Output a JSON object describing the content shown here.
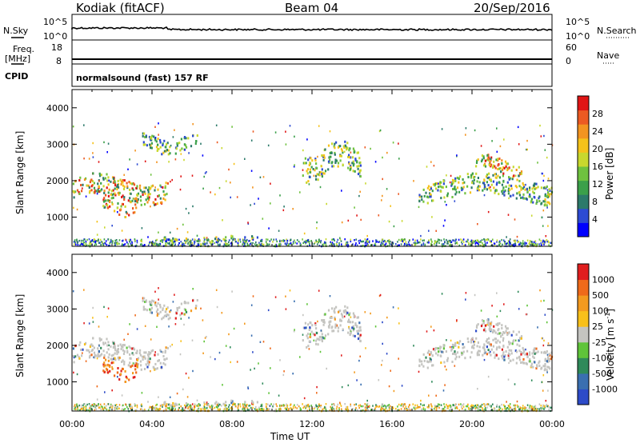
{
  "header": {
    "station": "Kodiak (fitACF)",
    "beam": "Beam 04",
    "date": "20/Sep/2016"
  },
  "strip_labels": {
    "nsky": "N.Sky",
    "nsky_ticks": [
      "10^5",
      "10^0"
    ],
    "nsearch": "N.Search",
    "nsearch_ticks": [
      "10^5",
      "10^0"
    ],
    "freq": "Freq.",
    "freq_unit": "[MHz]",
    "freq_ticks": [
      "18",
      "8"
    ],
    "nave": "Nave",
    "nave_ticks": [
      "60",
      "0"
    ],
    "cpid": "CPID",
    "mode": "normalsound (fast) 157 RF"
  },
  "chart_data": [
    {
      "type": "heatmap",
      "name": "power",
      "ylabel": "Slant Range [km]",
      "xlabel": "",
      "ylim": [
        200,
        4500
      ],
      "y_ticks": [
        "4000",
        "3000",
        "2000",
        "1000"
      ],
      "colorbar": {
        "label": "Power [dB]",
        "ticks": [
          "28",
          "24",
          "20",
          "16",
          "12",
          "8",
          "4"
        ],
        "colors": [
          "#0000ff",
          "#2d4bd3",
          "#2c7a6a",
          "#3ba04a",
          "#6fc23f",
          "#c8d82e",
          "#f5c21a",
          "#f39420",
          "#ec5a22",
          "#e01515"
        ]
      },
      "features": [
        {
          "t_start": 0.0,
          "t_end": 4.8,
          "r_low": 1300,
          "r_high": 2300,
          "level": "high"
        },
        {
          "t_start": 1.5,
          "t_end": 3.3,
          "r_low": 1000,
          "r_high": 1700,
          "level": "high"
        },
        {
          "t_start": 3.5,
          "t_end": 6.3,
          "r_low": 2700,
          "r_high": 3400,
          "level": "mid"
        },
        {
          "t_start": 4.4,
          "t_end": 9.3,
          "r_low": 330,
          "r_high": 530,
          "level": "mid"
        },
        {
          "t_start": 11.5,
          "t_end": 14.4,
          "r_low": 1900,
          "r_high": 3200,
          "level": "mid"
        },
        {
          "t_start": 17.3,
          "t_end": 24.0,
          "r_low": 1300,
          "r_high": 2300,
          "level": "mid"
        },
        {
          "t_start": 20.0,
          "t_end": 22.5,
          "r_low": 2100,
          "r_high": 2800,
          "level": "high"
        }
      ]
    },
    {
      "type": "heatmap",
      "name": "velocity",
      "ylabel": "Slant Range [km]",
      "xlabel": "Time UT",
      "ylim": [
        200,
        4500
      ],
      "y_ticks": [
        "4000",
        "3000",
        "2000",
        "1000"
      ],
      "x_ticks": [
        "00:00",
        "04:00",
        "08:00",
        "12:00",
        "16:00",
        "20:00",
        "00:00"
      ],
      "xlim": [
        0,
        24
      ],
      "colorbar": {
        "label": "Velocity [m s",
        "label_sup": "-1",
        "label_close": "]",
        "ticks": [
          "1000",
          "500",
          "100",
          "25",
          "-25",
          "-100",
          "-500",
          "-1000"
        ],
        "colors": [
          "#2d4bc8",
          "#3a6fb0",
          "#2f8a5a",
          "#5fc43a",
          "#c4c4c0",
          "#f8c01a",
          "#f39a1f",
          "#ef6a1a",
          "#e01e1e"
        ]
      }
    }
  ]
}
